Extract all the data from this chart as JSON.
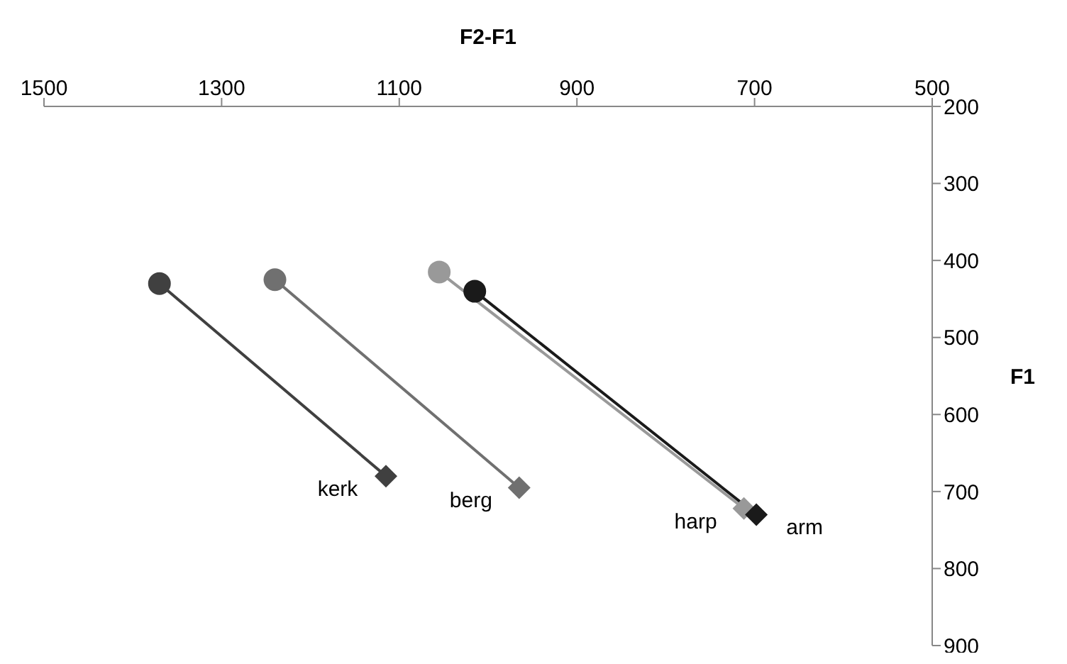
{
  "chart_data": {
    "type": "line",
    "xlabel": "F2-F1",
    "ylabel": "F1",
    "xlim": [
      1500,
      500
    ],
    "xticks": [
      1500,
      1300,
      1100,
      900,
      700,
      500
    ],
    "ylim": [
      900,
      200
    ],
    "yticks": [
      200,
      300,
      400,
      500,
      600,
      700,
      800,
      900
    ],
    "grid": false,
    "legend": false,
    "marker": "none",
    "series": [
      {
        "name": "kerk",
        "color": "#404040",
        "x": [
          1370,
          1115
        ],
        "values": [
          430,
          680
        ]
      },
      {
        "name": "berg",
        "color": "#707070",
        "x": [
          1240,
          965
        ],
        "values": [
          425,
          695
        ]
      },
      {
        "name": "harp",
        "color": "#999999",
        "x": [
          1055,
          712
        ],
        "values": [
          415,
          722
        ]
      },
      {
        "name": "arm",
        "color": "#1a1a1a",
        "x": [
          1015,
          698
        ],
        "values": [
          440,
          730
        ]
      },
      {
        "type": "scatter",
        "marker": "circle",
        "x": [
          1370,
          1240,
          1055,
          1015
        ],
        "values": [
          430,
          425,
          415,
          440
        ],
        "colors": [
          "#404040",
          "#707070",
          "#999999",
          "#1a1a1a"
        ]
      },
      {
        "type": "scatter",
        "marker": "diamond",
        "x": [
          1115,
          965,
          712,
          698
        ],
        "values": [
          680,
          695,
          722,
          730
        ],
        "colors": [
          "#404040",
          "#707070",
          "#999999",
          "#1a1a1a"
        ]
      }
    ]
  }
}
